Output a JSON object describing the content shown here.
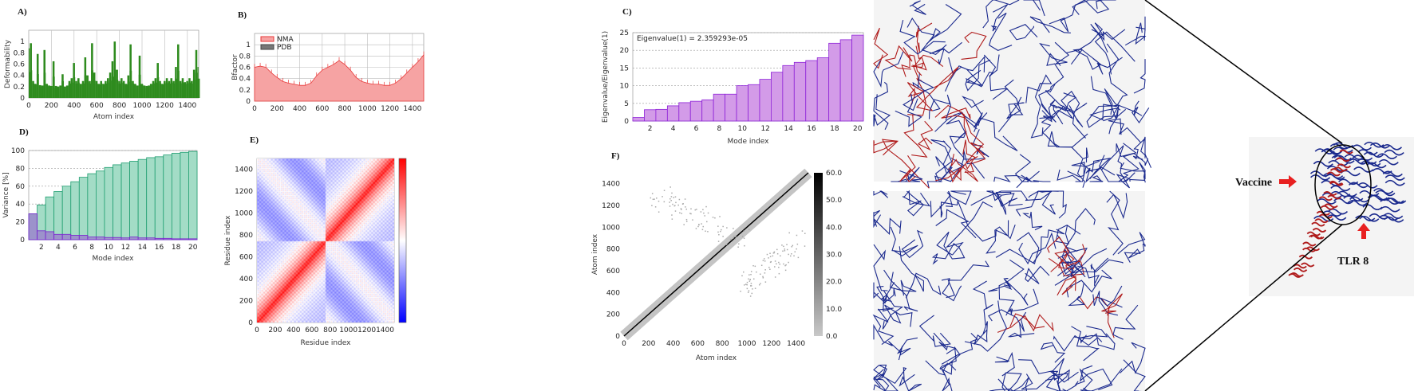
{
  "panels": {
    "a": "A)",
    "b": "B)",
    "c": "C)",
    "d": "D)",
    "e": "E)",
    "f": "F)"
  },
  "annotations": {
    "vaccine": "Vaccine",
    "tlr": "TLR 8"
  },
  "colors": {
    "deformability": "#2e8b1e",
    "nma_fill": "#f6a3a3",
    "nma_line": "#e83a3a",
    "pdb": "#777777",
    "eigen_fill": "#d39be8",
    "eigen_line": "#8e22d8",
    "cum_fill": "#a3dcc6",
    "cum_line": "#1f9e70",
    "ind_fill": "#9a7fcc",
    "ind_line": "#7a22d0",
    "network_blue": "#1b2a8e",
    "network_red": "#b01c1c"
  },
  "chart_data": [
    {
      "id": "A",
      "type": "bar",
      "xlabel": "Atom index",
      "ylabel": "Deformability",
      "xlim": [
        0,
        1500
      ],
      "ylim": [
        0,
        1.2
      ],
      "xticks": [
        0,
        200,
        400,
        600,
        800,
        1000,
        1200,
        1400
      ],
      "yticks": [
        0,
        0.2,
        0.4,
        0.6,
        0.8,
        1
      ],
      "grid": "vertical",
      "x_step": 20,
      "values": [
        0.88,
        0.97,
        0.3,
        0.25,
        0.78,
        0.22,
        0.2,
        0.85,
        0.25,
        0.2,
        0.18,
        0.65,
        0.18,
        0.15,
        0.2,
        0.42,
        0.15,
        0.2,
        0.3,
        0.35,
        0.62,
        0.3,
        0.35,
        0.25,
        0.3,
        0.72,
        0.4,
        0.3,
        0.97,
        0.45,
        0.3,
        0.25,
        0.3,
        0.25,
        0.3,
        0.35,
        0.45,
        0.65,
        1.0,
        0.5,
        0.3,
        0.35,
        0.3,
        0.25,
        0.4,
        0.95,
        0.3,
        0.25,
        0.2,
        0.75,
        0.25,
        0.2,
        0.18,
        0.2,
        0.25,
        0.3,
        0.35,
        0.62,
        0.3,
        0.25,
        0.3,
        0.35,
        0.3,
        0.35,
        0.3,
        0.55,
        0.95,
        0.3,
        0.35,
        0.28,
        0.3,
        0.35,
        0.3,
        0.5,
        0.85,
        0.55
      ]
    },
    {
      "id": "B",
      "type": "area",
      "xlabel": "",
      "ylabel": "Bfactor",
      "xlim": [
        0,
        1500
      ],
      "ylim": [
        0,
        1.2
      ],
      "xticks": [
        0,
        200,
        400,
        600,
        800,
        1000,
        1200,
        1400
      ],
      "yticks": [
        0,
        0.2,
        0.4,
        0.6,
        0.8,
        1
      ],
      "grid": "both",
      "legend": "top-left",
      "x_step": 50,
      "series": [
        {
          "name": "NMA",
          "values": [
            0.6,
            0.62,
            0.6,
            0.5,
            0.42,
            0.35,
            0.32,
            0.3,
            0.28,
            0.28,
            0.32,
            0.45,
            0.55,
            0.6,
            0.65,
            0.72,
            0.65,
            0.55,
            0.42,
            0.35,
            0.32,
            0.3,
            0.3,
            0.28,
            0.28,
            0.32,
            0.4,
            0.5,
            0.6,
            0.7,
            0.82
          ]
        },
        {
          "name": "PDB",
          "values": []
        }
      ]
    },
    {
      "id": "C",
      "type": "bar",
      "xlabel": "Mode index",
      "ylabel": "Eigenvalue/Eigenvalue(1)",
      "annotation": "Eigenvalue(1) = 2.359293e-05",
      "xlim": [
        0.5,
        20.5
      ],
      "ylim": [
        0,
        25
      ],
      "xticks": [
        2,
        4,
        6,
        8,
        10,
        12,
        14,
        16,
        18,
        20
      ],
      "yticks": [
        0,
        5,
        10,
        15,
        20,
        25
      ],
      "grid": "horizontal-dashed",
      "categories": [
        1,
        2,
        3,
        4,
        5,
        6,
        7,
        8,
        9,
        10,
        11,
        12,
        13,
        14,
        15,
        16,
        17,
        18,
        19,
        20
      ],
      "values": [
        1,
        3.2,
        3.3,
        4.3,
        5.2,
        5.6,
        6,
        7.6,
        7.6,
        10,
        10.3,
        11.8,
        13.8,
        15.7,
        16.6,
        17.1,
        17.9,
        22,
        23,
        24.3
      ]
    },
    {
      "id": "D",
      "type": "bar",
      "xlabel": "Mode index",
      "ylabel": "Variance [%]",
      "xlim": [
        0.5,
        20.5
      ],
      "ylim": [
        0,
        100
      ],
      "xticks": [
        2,
        4,
        6,
        8,
        10,
        12,
        14,
        16,
        18,
        20
      ],
      "yticks": [
        0,
        20,
        40,
        60,
        80,
        100
      ],
      "grid": "horizontal-dashed",
      "categories": [
        1,
        2,
        3,
        4,
        5,
        6,
        7,
        8,
        9,
        10,
        11,
        12,
        13,
        14,
        15,
        16,
        17,
        18,
        19,
        20
      ],
      "series": [
        {
          "values": [
            29,
            39,
            48,
            54,
            60,
            65,
            70,
            74,
            77,
            81,
            84,
            86,
            88,
            90,
            92,
            93,
            95,
            97,
            98,
            99
          ]
        },
        {
          "values": [
            29,
            10,
            9,
            6,
            6,
            5,
            5,
            3,
            3,
            2.5,
            2.5,
            2,
            3,
            2,
            2,
            1.5,
            1.5,
            1,
            1,
            1
          ]
        }
      ]
    },
    {
      "id": "E",
      "type": "heatmap",
      "xlabel": "Residue index",
      "ylabel": "Residue index",
      "xlim": [
        0,
        1500
      ],
      "ylim": [
        0,
        1500
      ],
      "xticks": [
        0,
        200,
        400,
        600,
        800,
        1000,
        1200,
        1400
      ],
      "yticks": [
        0,
        200,
        400,
        600,
        800,
        1000,
        1200,
        1400
      ],
      "colorscale": [
        "#0000ff",
        "#ffffff",
        "#ff0000"
      ],
      "domain_boundary": 750
    },
    {
      "id": "F",
      "type": "heatmap",
      "xlabel": "Atom index",
      "ylabel": "Atom index",
      "xlim": [
        0,
        1500
      ],
      "ylim": [
        0,
        1500
      ],
      "xticks": [
        0,
        200,
        400,
        600,
        800,
        1000,
        1200,
        1400
      ],
      "yticks": [
        0,
        200,
        400,
        600,
        800,
        1000,
        1200,
        1400
      ],
      "colorbar_ticks": [
        "0.0",
        "10.0",
        "20.0",
        "30.0",
        "40.0",
        "50.0",
        "60.0"
      ],
      "colorbar_range": [
        0,
        60
      ],
      "colorscale": [
        "#c8c8c8",
        "#000000"
      ]
    }
  ]
}
